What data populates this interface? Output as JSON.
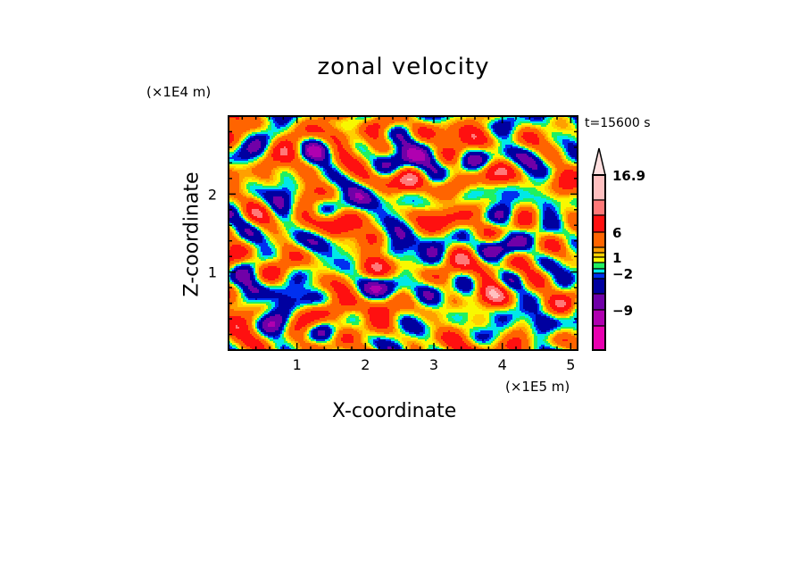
{
  "chart_data": {
    "type": "heatmap",
    "title": "zonal velocity",
    "xlabel": "X-coordinate",
    "ylabel": "Z-coordinate",
    "x_unit": "(×1E5 m)",
    "y_unit": "(×1E4 m)",
    "annotation": "t=15600 s",
    "xlim": [
      0,
      5.1
    ],
    "ylim": [
      0,
      3.0
    ],
    "xticks": [
      1,
      2,
      3,
      4,
      5
    ],
    "yticks": [
      1,
      2
    ],
    "xtick_labels": [
      "1",
      "2",
      "3",
      "4",
      "5"
    ],
    "ytick_labels": [
      "1",
      "2"
    ],
    "colorbar": {
      "levels": [
        16.9,
        13,
        10,
        6,
        3,
        2,
        1,
        0,
        -1,
        -2,
        -3,
        -6,
        -9,
        -12,
        -16
      ],
      "colors": [
        "#ffc0c0",
        "#ff7878",
        "#ff1010",
        "#ff6400",
        "#ffa000",
        "#ffd000",
        "#f8f800",
        "#20f060",
        "#00e8e8",
        "#0030f0",
        "#0000a0",
        "#7000a8",
        "#b000b0",
        "#e800b0"
      ],
      "over_color": "#ffe0e0",
      "labels": [
        {
          "text": "16.9",
          "level_index": 0
        },
        {
          "text": "6",
          "level_index": 3
        },
        {
          "text": "1",
          "level_index": 6
        },
        {
          "text": "−2",
          "level_index": 9
        },
        {
          "text": "−9",
          "level_index": 12
        }
      ]
    }
  }
}
